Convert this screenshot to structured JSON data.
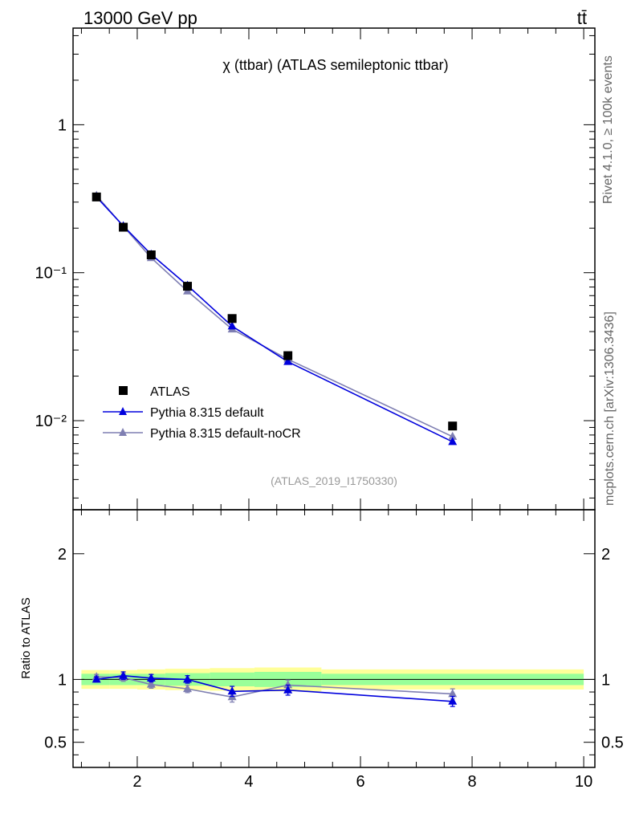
{
  "header": {
    "energy_label": "13000 GeV pp",
    "process_label": "tt̄",
    "title": "χ (ttbar) (ATLAS semileptonic ttbar)",
    "analysis_id": "(ATLAS_2019_I1750330)",
    "side_note_top": "Rivet 4.1.0, ≥ 100k events",
    "side_note_bottom": "mcplots.cern.ch [arXiv:1306.3436]"
  },
  "colors": {
    "data": "#000000",
    "pythia_default": "#0000dd",
    "pythia_nocr": "#7f7fb2",
    "band_inner": "#99ff99",
    "band_outer": "#ffff99"
  },
  "chart_data": [
    {
      "type": "scatter",
      "panel": "main",
      "yscale": "log",
      "xlim": [
        0.85,
        10.2
      ],
      "ylim": [
        0.0025,
        4.5
      ],
      "ytick_labels": [
        "1",
        "10⁻¹",
        "10⁻²"
      ],
      "ytick_values": [
        1,
        0.1,
        0.01
      ],
      "x": [
        1.27,
        1.75,
        2.25,
        2.9,
        3.7,
        4.7,
        7.65
      ],
      "series": [
        {
          "name": "ATLAS",
          "marker": "square",
          "values": [
            0.325,
            0.203,
            0.132,
            0.081,
            0.049,
            0.0275,
            0.0092
          ]
        },
        {
          "name": "Pythia 8.315 default",
          "marker": "triangle",
          "values": [
            0.325,
            0.207,
            0.133,
            0.082,
            0.0435,
            0.025,
            0.0072
          ]
        },
        {
          "name": "Pythia 8.315 default-noCR",
          "marker": "triangle",
          "values": [
            0.332,
            0.206,
            0.126,
            0.075,
            0.0415,
            0.026,
            0.0078
          ]
        }
      ]
    },
    {
      "type": "line",
      "panel": "ratio",
      "ylabel": "Ratio to ATLAS",
      "xlim": [
        0.85,
        10.2
      ],
      "ylim": [
        0.3,
        2.35
      ],
      "ytick_labels": [
        "0.5",
        "1",
        "2"
      ],
      "ytick_values": [
        0.5,
        1,
        2
      ],
      "xtick_labels": [
        "2",
        "4",
        "6",
        "8",
        "10"
      ],
      "xtick_values": [
        2,
        4,
        6,
        8,
        10
      ],
      "x": [
        1.27,
        1.75,
        2.25,
        2.9,
        3.7,
        4.7,
        7.65
      ],
      "bands": {
        "edges": [
          1.0,
          1.5,
          2.0,
          2.5,
          3.3,
          4.1,
          5.3,
          10.0
        ],
        "inner": [
          0.045,
          0.045,
          0.045,
          0.05,
          0.055,
          0.06,
          0.045
        ],
        "outer": [
          0.075,
          0.075,
          0.08,
          0.085,
          0.09,
          0.095,
          0.08
        ]
      },
      "series": [
        {
          "name": "Pythia 8.315 default",
          "values": [
            1.0,
            1.03,
            1.01,
            1.0,
            0.905,
            0.915,
            0.825
          ],
          "errors": [
            0.02,
            0.03,
            0.03,
            0.03,
            0.04,
            0.04,
            0.04
          ]
        },
        {
          "name": "Pythia 8.315 default-noCR",
          "values": [
            1.02,
            1.015,
            0.96,
            0.925,
            0.86,
            0.955,
            0.885
          ],
          "errors": [
            0.02,
            0.03,
            0.03,
            0.03,
            0.04,
            0.04,
            0.04
          ]
        }
      ]
    }
  ]
}
